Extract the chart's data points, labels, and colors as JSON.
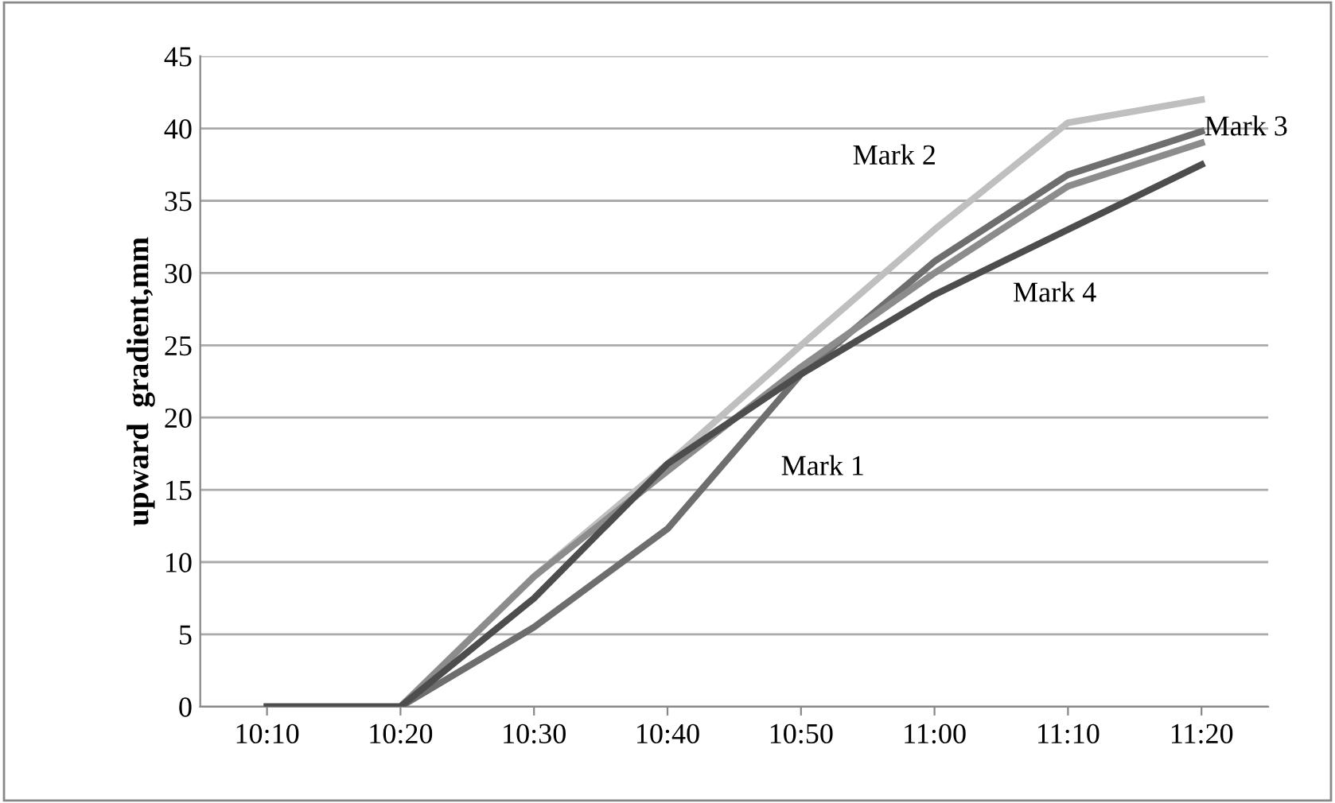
{
  "chart_data": {
    "type": "line",
    "ylabel": "upward  gradient,mm",
    "categories": [
      "10:10",
      "10:20",
      "10:30",
      "10:40",
      "10:50",
      "11:00",
      "11:10",
      "11:20"
    ],
    "series": [
      {
        "name": "Mark 1",
        "color": "#6e6e6e",
        "values": [
          0,
          0,
          5.5,
          12.3,
          23,
          30.8,
          36.8,
          39.8
        ]
      },
      {
        "name": "Mark 2",
        "color": "#bfbfbf",
        "values": [
          0,
          0,
          9,
          16.8,
          25,
          33,
          40.4,
          42
        ]
      },
      {
        "name": "Mark 3",
        "color": "#8c8c8c",
        "values": [
          0,
          0,
          9,
          16.3,
          23.5,
          30,
          36,
          39
        ]
      },
      {
        "name": "Mark 4",
        "color": "#4d4d4d",
        "values": [
          0,
          0,
          7.5,
          16.8,
          23,
          28.5,
          33,
          37.5
        ]
      }
    ],
    "ylim": [
      0,
      45
    ],
    "yticks": [
      0,
      5,
      10,
      15,
      20,
      25,
      30,
      35,
      40,
      45
    ],
    "grid": "y",
    "legend": false,
    "marker": "none",
    "line_style": "solid"
  }
}
